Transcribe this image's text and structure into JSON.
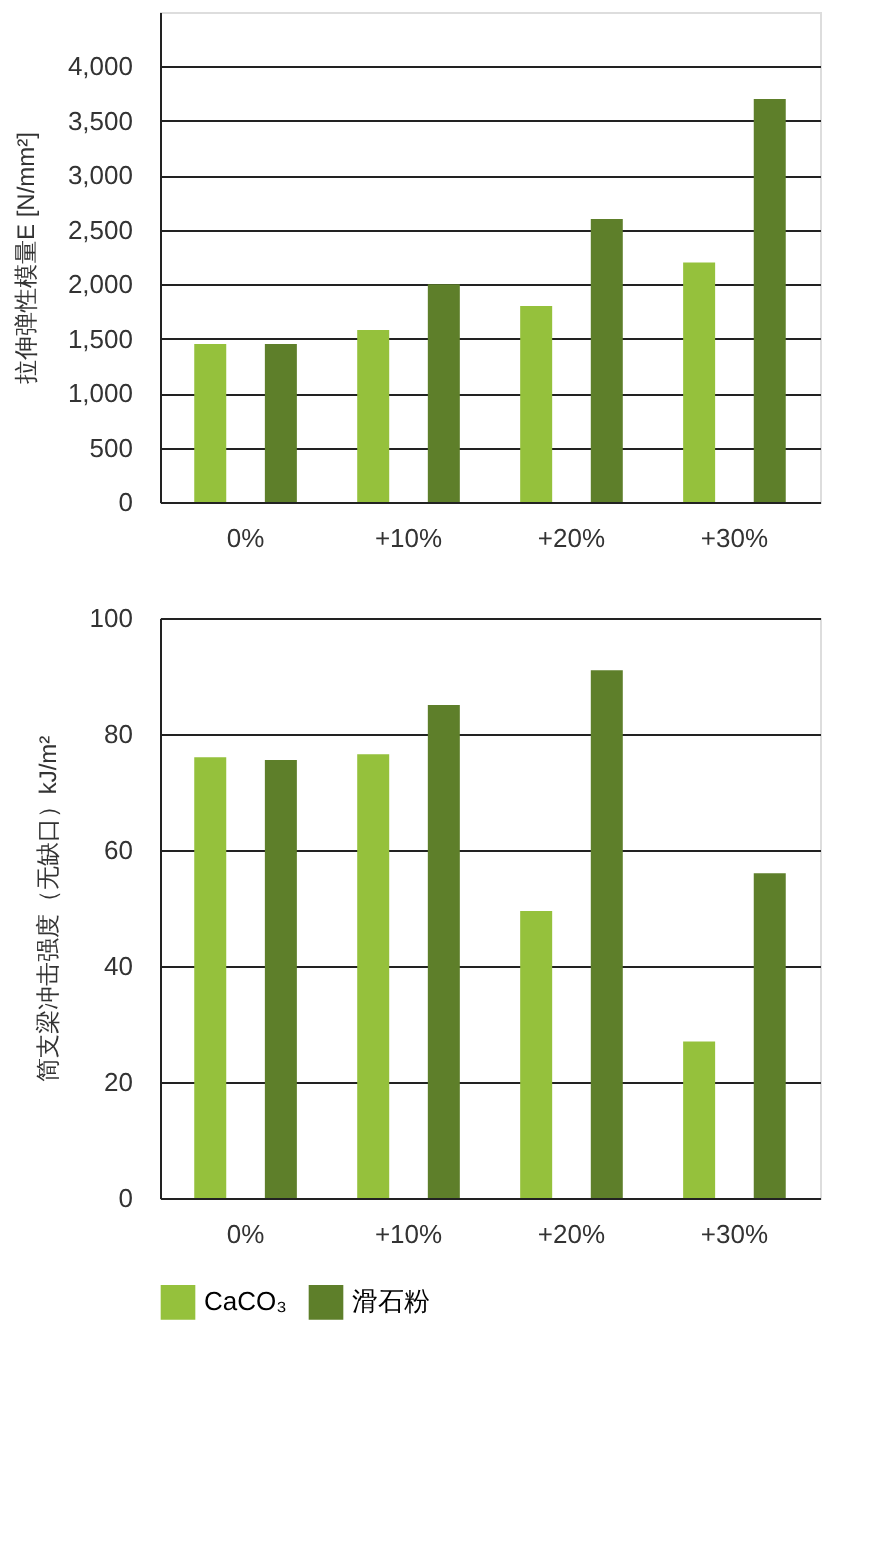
{
  "chart_data": [
    {
      "type": "bar",
      "ylabel": "拉伸弹性模量E [N/mm²]",
      "categories": [
        "0%",
        "+10%",
        "+20%",
        "+30%"
      ],
      "series": [
        {
          "color": "#95c13c",
          "values": [
            1450,
            1580,
            1800,
            2200
          ]
        },
        {
          "color": "#5e7f2a",
          "values": [
            1450,
            2000,
            2600,
            3700
          ]
        }
      ],
      "ylim": [
        0,
        4500
      ],
      "yticks": [
        0,
        500,
        {
          "value": 1000,
          "label": "1,000"
        },
        {
          "value": 1500,
          "label": "1,500"
        },
        {
          "value": 2000,
          "label": "2,000"
        },
        {
          "value": 2500,
          "label": "2,500"
        },
        {
          "value": 3000,
          "label": "3,000"
        },
        {
          "value": 3500,
          "label": "3,500"
        },
        {
          "value": 4000,
          "label": "4,000"
        }
      ],
      "grid": "y",
      "legend": false
    },
    {
      "type": "bar",
      "ylabel": "简支梁冲击强度（无缺口）kJ/m²",
      "categories": [
        "0%",
        "+10%",
        "+20%",
        "+30%"
      ],
      "series": [
        {
          "name": "CaCO₃",
          "color": "#95c13c",
          "values": [
            76,
            76.5,
            49.5,
            27
          ]
        },
        {
          "name": "滑石粉",
          "color": "#5e7f2a",
          "values": [
            75.5,
            85,
            91,
            56
          ]
        }
      ],
      "ylim": [
        0,
        100
      ],
      "yticks": [
        0,
        20,
        40,
        60,
        80,
        100
      ],
      "grid": "y",
      "legend": "bottom"
    }
  ]
}
